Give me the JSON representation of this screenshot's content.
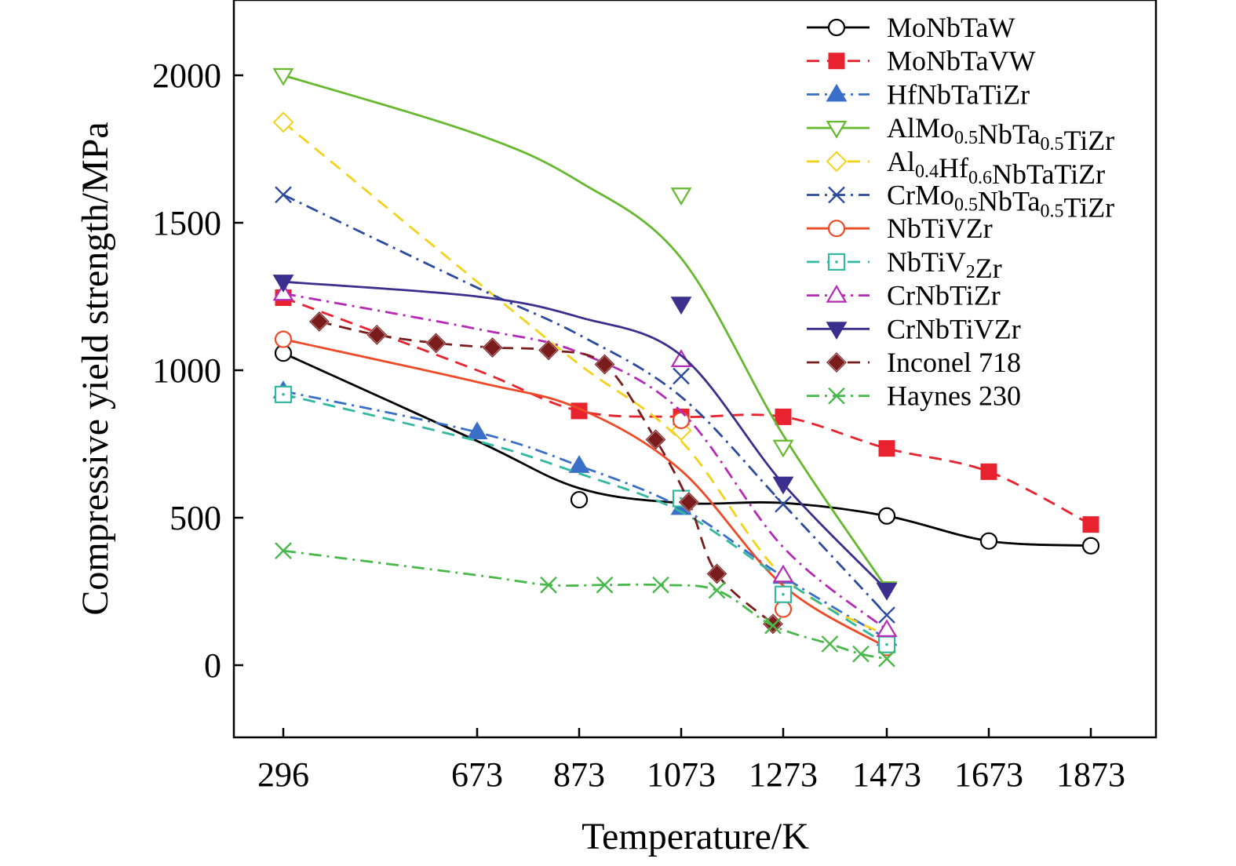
{
  "chart_data": {
    "type": "line",
    "xlabel": "Temperature/K",
    "ylabel": "Compressive yield strength/MPa",
    "ylim": [
      -250,
      2250
    ],
    "xticks": [
      296,
      673,
      873,
      1073,
      1273,
      1473,
      1673,
      1873
    ],
    "yticks": [
      0,
      500,
      1000,
      1500,
      2000
    ],
    "grid": false,
    "legend_position": "top-right",
    "series": [
      {
        "name": "MoNbTaW",
        "name_parts": [
          [
            "MoNbTaW",
            ""
          ]
        ],
        "color": "#000000",
        "dash": "solid",
        "marker": "circle-open",
        "x": [
          296,
          873,
          1473,
          1673,
          1873
        ],
        "y": [
          1058,
          561,
          506,
          421,
          405
        ],
        "curve_x": [
          296,
          673,
          873,
          1073,
          1273,
          1473,
          1673,
          1873
        ],
        "curve_y": [
          1058,
          760,
          600,
          550,
          550,
          506,
          421,
          405
        ]
      },
      {
        "name": "MoNbTaVW",
        "name_parts": [
          [
            "MoNbTaVW",
            ""
          ]
        ],
        "color": "#e8222e",
        "dash": "dashed",
        "marker": "square-filled",
        "x": [
          296,
          873,
          1073,
          1273,
          1473,
          1673,
          1873
        ],
        "y": [
          1246,
          862,
          842,
          842,
          735,
          656,
          477
        ],
        "curve_x": [
          296,
          673,
          873,
          1073,
          1273,
          1473,
          1673,
          1873
        ],
        "curve_y": [
          1246,
          1000,
          862,
          842,
          842,
          735,
          656,
          477
        ]
      },
      {
        "name": "HfNbTaTiZr",
        "name_parts": [
          [
            "HfNbTaTiZr",
            ""
          ]
        ],
        "color": "#3a6fc7",
        "dash": "dashdot",
        "marker": "triangle-up-filled",
        "x": [
          296,
          673,
          873,
          1073,
          1273,
          1473
        ],
        "y": [
          929,
          790,
          676,
          534,
          300,
          90
        ],
        "curve_x": [
          296,
          673,
          873,
          1073,
          1273,
          1473
        ],
        "curve_y": [
          929,
          790,
          676,
          534,
          300,
          90
        ]
      },
      {
        "name": "AlMo0.5NbTa0.5TiZr",
        "name_parts": [
          [
            "AlMo",
            ""
          ],
          [
            "0.5",
            "sub"
          ],
          [
            "NbTa",
            ""
          ],
          [
            "0.5",
            "sub"
          ],
          [
            "TiZr",
            ""
          ]
        ],
        "color": "#66b82e",
        "dash": "solid",
        "marker": "triangle-down-open",
        "x": [
          296,
          1073,
          1273,
          1473
        ],
        "y": [
          2000,
          1595,
          740,
          260
        ],
        "curve_x": [
          296,
          673,
          873,
          1073,
          1273,
          1473
        ],
        "curve_y": [
          2000,
          1800,
          1640,
          1380,
          780,
          260
        ]
      },
      {
        "name": "Al0.4Hf0.6NbTaTiZr",
        "name_parts": [
          [
            "Al",
            ""
          ],
          [
            "0.4",
            "sub"
          ],
          [
            "Hf",
            ""
          ],
          [
            "0.6",
            "sub"
          ],
          [
            "NbTaTiZr",
            ""
          ]
        ],
        "color": "#f2d21c",
        "dash": "dashed",
        "marker": "diamond-open",
        "x": [
          296,
          1073,
          1473
        ],
        "y": [
          1841,
          796,
          100
        ],
        "curve_x": [
          296,
          673,
          873,
          1073,
          1273,
          1473
        ],
        "curve_y": [
          1841,
          1300,
          1020,
          760,
          300,
          100
        ]
      },
      {
        "name": "CrMo0.5NbTa0.5TiZr",
        "name_parts": [
          [
            "CrMo",
            ""
          ],
          [
            "0.5",
            "sub"
          ],
          [
            "NbTa",
            ""
          ],
          [
            "0.5",
            "sub"
          ],
          [
            "TiZr",
            ""
          ]
        ],
        "color": "#2c4a9e",
        "dash": "dashdot",
        "marker": "x",
        "x": [
          296,
          1073,
          1273,
          1473
        ],
        "y": [
          1595,
          980,
          546,
          170
        ],
        "curve_x": [
          296,
          673,
          873,
          1073,
          1273,
          1473
        ],
        "curve_y": [
          1595,
          1280,
          1120,
          910,
          546,
          170
        ]
      },
      {
        "name": "NbTiVZr",
        "name_parts": [
          [
            "NbTiVZr",
            ""
          ]
        ],
        "color": "#ee4a28",
        "dash": "solid",
        "marker": "circle-open",
        "x": [
          296,
          1073,
          1273,
          1473
        ],
        "y": [
          1105,
          830,
          190,
          60
        ],
        "curve_x": [
          296,
          673,
          873,
          1073,
          1273,
          1473
        ],
        "curve_y": [
          1105,
          960,
          870,
          660,
          270,
          60
        ]
      },
      {
        "name": "NbTiV2Zr",
        "name_parts": [
          [
            "NbTiV",
            ""
          ],
          [
            "2",
            "sub"
          ],
          [
            "Zr",
            ""
          ]
        ],
        "color": "#33b8a0",
        "dash": "dashed",
        "marker": "square-dot",
        "x": [
          296,
          1073,
          1273,
          1473
        ],
        "y": [
          918,
          565,
          240,
          70
        ],
        "curve_x": [
          296,
          673,
          873,
          1073,
          1273,
          1473
        ],
        "curve_y": [
          918,
          760,
          650,
          520,
          290,
          70
        ]
      },
      {
        "name": "CrNbTiZr",
        "name_parts": [
          [
            "CrNbTiZr",
            ""
          ]
        ],
        "color": "#b62bb6",
        "dash": "dashdot",
        "marker": "triangle-up-open",
        "x": [
          296,
          1073,
          1273,
          1473
        ],
        "y": [
          1260,
          1035,
          305,
          120
        ],
        "curve_x": [
          296,
          673,
          873,
          1073,
          1273,
          1473
        ],
        "curve_y": [
          1260,
          1140,
          1060,
          860,
          400,
          120
        ]
      },
      {
        "name": "CrNbTiVZr",
        "name_parts": [
          [
            "CrNbTiVZr",
            ""
          ]
        ],
        "color": "#3b2e8c",
        "dash": "solid",
        "marker": "triangle-down-filled",
        "x": [
          296,
          1073,
          1273,
          1473
        ],
        "y": [
          1300,
          1225,
          615,
          255
        ],
        "curve_x": [
          296,
          673,
          873,
          1073,
          1273,
          1473
        ],
        "curve_y": [
          1300,
          1250,
          1180,
          1050,
          615,
          255
        ]
      },
      {
        "name": "Inconel 718",
        "name_parts": [
          [
            "Inconel 718",
            ""
          ]
        ],
        "color": "#7a1c1c",
        "dash": "dashed",
        "marker": "diamond-filled",
        "x": [
          366,
          478,
          593,
          703,
          813,
          923,
          1023,
          1088,
          1143,
          1253
        ],
        "y": [
          1165,
          1120,
          1092,
          1077,
          1068,
          1020,
          765,
          553,
          310,
          140
        ],
        "curve_x": [
          366,
          478,
          593,
          703,
          813,
          923,
          1023,
          1088,
          1143,
          1253
        ],
        "curve_y": [
          1165,
          1120,
          1092,
          1077,
          1068,
          1020,
          765,
          553,
          310,
          140
        ]
      },
      {
        "name": "Haynes 230",
        "name_parts": [
          [
            "Haynes 230",
            ""
          ]
        ],
        "color": "#49b84b",
        "dash": "dashdot",
        "marker": "x",
        "x": [
          296,
          813,
          923,
          1033,
          1143,
          1253,
          1363,
          1423,
          1473
        ],
        "y": [
          388,
          272,
          272,
          272,
          254,
          134,
          72,
          38,
          22
        ],
        "curve_x": [
          296,
          673,
          813,
          923,
          1033,
          1143,
          1253,
          1363,
          1423,
          1473
        ],
        "curve_y": [
          388,
          305,
          272,
          272,
          272,
          254,
          134,
          72,
          38,
          22
        ]
      }
    ]
  }
}
